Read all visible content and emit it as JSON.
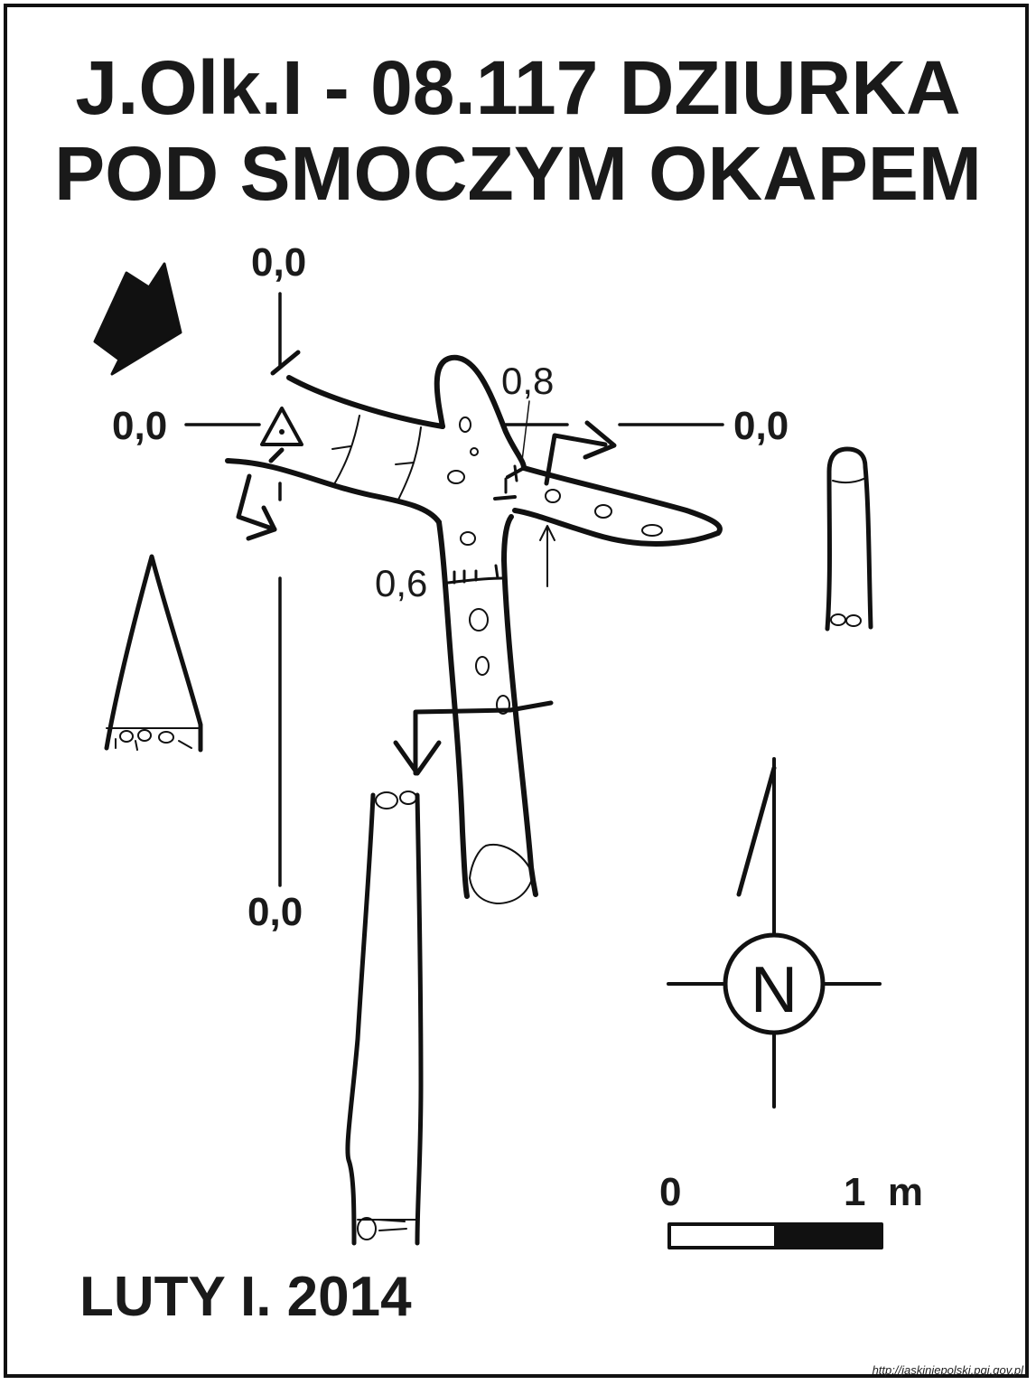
{
  "title": {
    "line1": "J.Olk.I - 08.117  DZIURKA",
    "line2": "POD SMOCZYM OKAPEM"
  },
  "section_labels": {
    "top": "0,0",
    "left": "0,0",
    "right": "0,0",
    "bottom": "0,0"
  },
  "depth_labels": {
    "upper": "0,8",
    "lower": "0,6"
  },
  "compass": {
    "letter": "N"
  },
  "scale_bar": {
    "start_label": "0",
    "end_label": "1  m"
  },
  "date": "LUTY I. 2014",
  "source": "http://jaskiniepolski.pgi.gov.pl",
  "colors": {
    "ink": "#111111",
    "paper": "#ffffff"
  }
}
